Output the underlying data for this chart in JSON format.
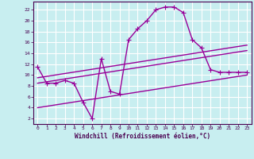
{
  "xlabel": "Windchill (Refroidissement éolien,°C)",
  "bg_color": "#c8eef0",
  "grid_color": "#ffffff",
  "line_color": "#990099",
  "xlim": [
    -0.5,
    23.5
  ],
  "ylim": [
    1,
    23.5
  ],
  "xticks": [
    0,
    1,
    2,
    3,
    4,
    5,
    6,
    7,
    8,
    9,
    10,
    11,
    12,
    13,
    14,
    15,
    16,
    17,
    18,
    19,
    20,
    21,
    22,
    23
  ],
  "yticks": [
    2,
    4,
    6,
    8,
    10,
    12,
    14,
    16,
    18,
    20,
    22
  ],
  "line1_x": [
    0,
    1,
    2,
    3,
    4,
    5,
    6,
    7,
    8,
    9,
    10,
    11,
    12,
    13,
    14,
    15,
    16,
    17,
    18,
    19,
    20,
    21,
    22,
    23
  ],
  "line1_y": [
    11.5,
    8.5,
    8.5,
    9.0,
    8.5,
    5.0,
    2.0,
    13.0,
    7.0,
    6.5,
    16.5,
    18.5,
    20.0,
    22.0,
    22.5,
    22.5,
    21.5,
    16.5,
    15.0,
    11.0,
    10.5,
    10.5,
    10.5,
    10.5
  ],
  "line2_x": [
    0,
    23
  ],
  "line2_y": [
    9.5,
    15.5
  ],
  "line3_x": [
    0,
    23
  ],
  "line3_y": [
    8.5,
    14.5
  ],
  "line4_x": [
    0,
    23
  ],
  "line4_y": [
    4.0,
    10.0
  ],
  "markersize": 2.5,
  "linewidth": 1.0
}
